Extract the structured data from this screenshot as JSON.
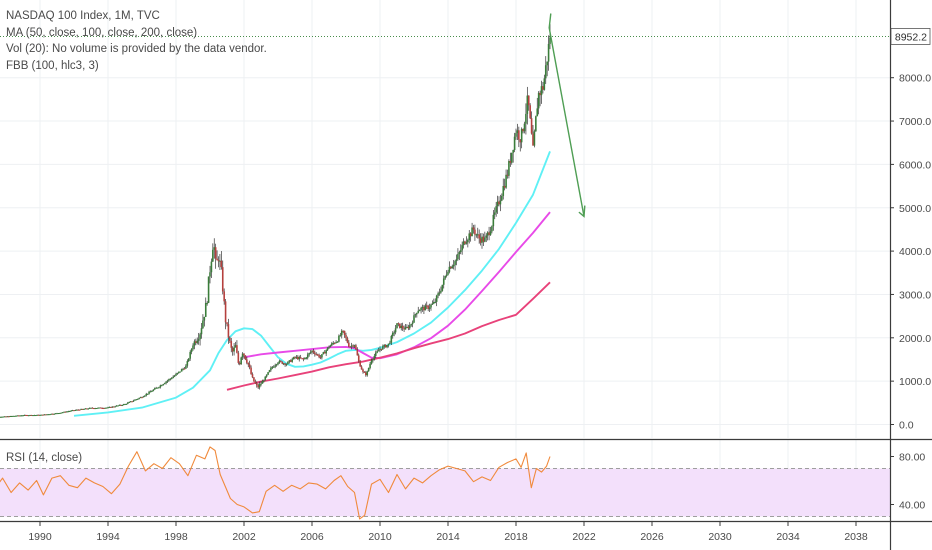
{
  "legend": {
    "title": "NASDAQ 100 Index, 1M, TVC",
    "ma": "MA (50, close, 100, close, 200, close)",
    "vol": "Vol (20): No volume is provided by the data vendor.",
    "fbb": "FBB (100, hlc3, 3)"
  },
  "rsi_legend": "RSI (14, close)",
  "last_price": "8952.2",
  "colors": {
    "candle_up": "#3a7d3a",
    "candle_down": "#b5403e",
    "ma_50": "#5ff0f5",
    "ma_100": "#e84ae8",
    "ma_200": "#e8427a",
    "arrow": "#4f9e54",
    "rsi_line": "#f08a3c",
    "rsi_band": "#f3e0fb",
    "last_price_line": "#2e7d32"
  },
  "chart_data": [
    {
      "type": "candlestick",
      "title": "NASDAQ 100 Index, 1M, TVC",
      "xlabel": "",
      "ylabel": "",
      "x_ticks": [
        "1990",
        "1994",
        "1998",
        "2002",
        "2006",
        "2010",
        "2014",
        "2018",
        "2022",
        "2026",
        "2030",
        "2034",
        "2038"
      ],
      "y_ticks": [
        "0.0",
        "1000.0",
        "2000.0",
        "3000.0",
        "4000.0",
        "5000.0",
        "6000.0",
        "7000.0",
        "8000.0"
      ],
      "xlim": [
        1987,
        2040.5
      ],
      "ylim": [
        -250,
        9750
      ],
      "grid": true,
      "price_path": [
        [
          1987.0,
          170
        ],
        [
          1988.0,
          185
        ],
        [
          1989.0,
          215
        ],
        [
          1990.0,
          220
        ],
        [
          1991.0,
          260
        ],
        [
          1992.0,
          330
        ],
        [
          1993.0,
          380
        ],
        [
          1994.0,
          390
        ],
        [
          1995.0,
          470
        ],
        [
          1996.0,
          640
        ],
        [
          1997.0,
          880
        ],
        [
          1998.0,
          1150
        ],
        [
          1998.6,
          1350
        ],
        [
          1999.0,
          1850
        ],
        [
          1999.4,
          2100
        ],
        [
          1999.8,
          2800
        ],
        [
          2000.0,
          3600
        ],
        [
          2000.2,
          4300
        ],
        [
          2000.35,
          3600
        ],
        [
          2000.5,
          3900
        ],
        [
          2000.7,
          3400
        ],
        [
          2000.9,
          2450
        ],
        [
          2001.1,
          2000
        ],
        [
          2001.3,
          1650
        ],
        [
          2001.5,
          1800
        ],
        [
          2001.7,
          1350
        ],
        [
          2001.9,
          1700
        ],
        [
          2002.2,
          1450
        ],
        [
          2002.5,
          1050
        ],
        [
          2002.8,
          850
        ],
        [
          2003.2,
          1050
        ],
        [
          2003.6,
          1300
        ],
        [
          2004.0,
          1450
        ],
        [
          2004.5,
          1400
        ],
        [
          2005.0,
          1550
        ],
        [
          2005.5,
          1500
        ],
        [
          2006.0,
          1700
        ],
        [
          2006.5,
          1550
        ],
        [
          2007.0,
          1800
        ],
        [
          2007.5,
          1950
        ],
        [
          2007.8,
          2150
        ],
        [
          2008.2,
          1800
        ],
        [
          2008.5,
          1850
        ],
        [
          2008.75,
          1450
        ],
        [
          2009.0,
          1200
        ],
        [
          2009.2,
          1150
        ],
        [
          2009.5,
          1500
        ],
        [
          2010.0,
          1750
        ],
        [
          2010.5,
          1850
        ],
        [
          2011.0,
          2300
        ],
        [
          2011.5,
          2200
        ],
        [
          2011.8,
          2300
        ],
        [
          2012.2,
          2650
        ],
        [
          2012.8,
          2700
        ],
        [
          2013.2,
          2800
        ],
        [
          2013.6,
          3150
        ],
        [
          2014.0,
          3600
        ],
        [
          2014.5,
          3800
        ],
        [
          2015.0,
          4250
        ],
        [
          2015.5,
          4500
        ],
        [
          2015.8,
          4300
        ],
        [
          2016.2,
          4250
        ],
        [
          2016.6,
          4650
        ],
        [
          2017.0,
          5150
        ],
        [
          2017.5,
          5800
        ],
        [
          2018.0,
          6800
        ],
        [
          2018.3,
          6600
        ],
        [
          2018.7,
          7500
        ],
        [
          2019.0,
          6300
        ],
        [
          2019.3,
          7600
        ],
        [
          2019.6,
          7800
        ],
        [
          2019.9,
          8650
        ],
        [
          2020.05,
          9150
        ]
      ],
      "series": [
        {
          "name": "MA 50",
          "values": [
            [
              1992.0,
              200
            ],
            [
              1994.0,
              280
            ],
            [
              1996.0,
              390
            ],
            [
              1998.0,
              620
            ],
            [
              1999.0,
              850
            ],
            [
              2000.0,
              1250
            ],
            [
              2000.5,
              1650
            ],
            [
              2001.0,
              1950
            ],
            [
              2001.5,
              2150
            ],
            [
              2002.0,
              2220
            ],
            [
              2002.5,
              2200
            ],
            [
              2003.0,
              2050
            ],
            [
              2003.5,
              1800
            ],
            [
              2004.0,
              1550
            ],
            [
              2004.5,
              1400
            ],
            [
              2005.0,
              1330
            ],
            [
              2005.5,
              1340
            ],
            [
              2006.0,
              1380
            ],
            [
              2006.5,
              1430
            ],
            [
              2007.0,
              1520
            ],
            [
              2007.5,
              1620
            ],
            [
              2008.0,
              1700
            ],
            [
              2008.5,
              1720
            ],
            [
              2009.0,
              1700
            ],
            [
              2009.5,
              1720
            ],
            [
              2010.0,
              1770
            ],
            [
              2011.0,
              1900
            ],
            [
              2012.0,
              2100
            ],
            [
              2013.0,
              2350
            ],
            [
              2014.0,
              2700
            ],
            [
              2015.0,
              3100
            ],
            [
              2016.0,
              3550
            ],
            [
              2017.0,
              4050
            ],
            [
              2018.0,
              4650
            ],
            [
              2019.0,
              5300
            ],
            [
              2020.0,
              6300
            ]
          ]
        },
        {
          "name": "MA 100",
          "values": [
            [
              2002.0,
              1550
            ],
            [
              2003.0,
              1620
            ],
            [
              2004.0,
              1660
            ],
            [
              2005.0,
              1700
            ],
            [
              2006.0,
              1740
            ],
            [
              2007.0,
              1780
            ],
            [
              2008.0,
              1790
            ],
            [
              2008.5,
              1760
            ],
            [
              2009.0,
              1650
            ],
            [
              2009.5,
              1540
            ],
            [
              2010.0,
              1530
            ],
            [
              2011.0,
              1620
            ],
            [
              2012.0,
              1780
            ],
            [
              2013.0,
              1990
            ],
            [
              2014.0,
              2280
            ],
            [
              2015.0,
              2650
            ],
            [
              2016.0,
              3080
            ],
            [
              2017.0,
              3520
            ],
            [
              2018.0,
              3980
            ],
            [
              2019.0,
              4420
            ],
            [
              2020.0,
              4900
            ]
          ]
        },
        {
          "name": "MA 200",
          "values": [
            [
              2001.0,
              800
            ],
            [
              2002.0,
              900
            ],
            [
              2003.0,
              990
            ],
            [
              2004.0,
              1060
            ],
            [
              2005.0,
              1140
            ],
            [
              2006.0,
              1220
            ],
            [
              2007.0,
              1320
            ],
            [
              2008.0,
              1390
            ],
            [
              2009.0,
              1450
            ],
            [
              2010.0,
              1540
            ],
            [
              2011.0,
              1640
            ],
            [
              2012.0,
              1760
            ],
            [
              2013.0,
              1870
            ],
            [
              2014.0,
              1970
            ],
            [
              2015.0,
              2100
            ],
            [
              2016.0,
              2270
            ],
            [
              2017.0,
              2410
            ],
            [
              2018.0,
              2530
            ],
            [
              2019.0,
              2900
            ],
            [
              2020.0,
              3280
            ]
          ]
        }
      ],
      "annotations": [
        {
          "type": "arrow",
          "points": [
            [
              2020.05,
              9480
            ],
            [
              2019.95,
              9150
            ],
            [
              2022.0,
              4800
            ]
          ],
          "head": [
            [
              2021.7,
              4900
            ],
            [
              2022.0,
              4800
            ],
            [
              2022.05,
              5050
            ]
          ]
        }
      ],
      "last_value": 8952.2
    },
    {
      "type": "line",
      "title": "RSI (14, close)",
      "xlabel": "",
      "ylabel": "",
      "y_ticks": [
        "80.00",
        "40.00"
      ],
      "ylim": [
        26,
        93
      ],
      "band": [
        30,
        70
      ],
      "values": [
        [
          1987.0,
          47
        ],
        [
          1987.8,
          62
        ],
        [
          1988.3,
          50
        ],
        [
          1988.8,
          58
        ],
        [
          1989.3,
          52
        ],
        [
          1989.8,
          60
        ],
        [
          1990.2,
          48
        ],
        [
          1990.7,
          62
        ],
        [
          1991.2,
          64
        ],
        [
          1991.7,
          56
        ],
        [
          1992.2,
          54
        ],
        [
          1992.7,
          62
        ],
        [
          1993.2,
          58
        ],
        [
          1993.7,
          55
        ],
        [
          1994.2,
          49
        ],
        [
          1994.7,
          57
        ],
        [
          1995.2,
          72
        ],
        [
          1995.7,
          84
        ],
        [
          1996.2,
          68
        ],
        [
          1996.7,
          74
        ],
        [
          1997.2,
          70
        ],
        [
          1997.7,
          79
        ],
        [
          1998.2,
          74
        ],
        [
          1998.7,
          64
        ],
        [
          1999.2,
          81
        ],
        [
          1999.7,
          78
        ],
        [
          2000.0,
          88
        ],
        [
          2000.3,
          85
        ],
        [
          2000.6,
          65
        ],
        [
          2000.9,
          55
        ],
        [
          2001.2,
          45
        ],
        [
          2001.6,
          40
        ],
        [
          2002.0,
          38
        ],
        [
          2002.5,
          33
        ],
        [
          2002.9,
          34
        ],
        [
          2003.3,
          51
        ],
        [
          2003.8,
          56
        ],
        [
          2004.3,
          51
        ],
        [
          2004.8,
          56
        ],
        [
          2005.3,
          53
        ],
        [
          2005.8,
          58
        ],
        [
          2006.3,
          57
        ],
        [
          2006.8,
          53
        ],
        [
          2007.3,
          60
        ],
        [
          2007.7,
          64
        ],
        [
          2008.1,
          55
        ],
        [
          2008.5,
          50
        ],
        [
          2008.8,
          28
        ],
        [
          2009.1,
          31
        ],
        [
          2009.5,
          57
        ],
        [
          2010.0,
          61
        ],
        [
          2010.5,
          50
        ],
        [
          2011.0,
          65
        ],
        [
          2011.5,
          53
        ],
        [
          2012.0,
          62
        ],
        [
          2012.5,
          58
        ],
        [
          2013.0,
          64
        ],
        [
          2013.5,
          69
        ],
        [
          2014.0,
          72
        ],
        [
          2014.5,
          70
        ],
        [
          2015.0,
          68
        ],
        [
          2015.5,
          59
        ],
        [
          2016.0,
          63
        ],
        [
          2016.5,
          60
        ],
        [
          2017.0,
          71
        ],
        [
          2017.5,
          75
        ],
        [
          2018.0,
          78
        ],
        [
          2018.3,
          71
        ],
        [
          2018.6,
          83
        ],
        [
          2018.9,
          54
        ],
        [
          2019.2,
          70
        ],
        [
          2019.5,
          67
        ],
        [
          2019.8,
          72
        ],
        [
          2020.0,
          80
        ]
      ]
    }
  ]
}
